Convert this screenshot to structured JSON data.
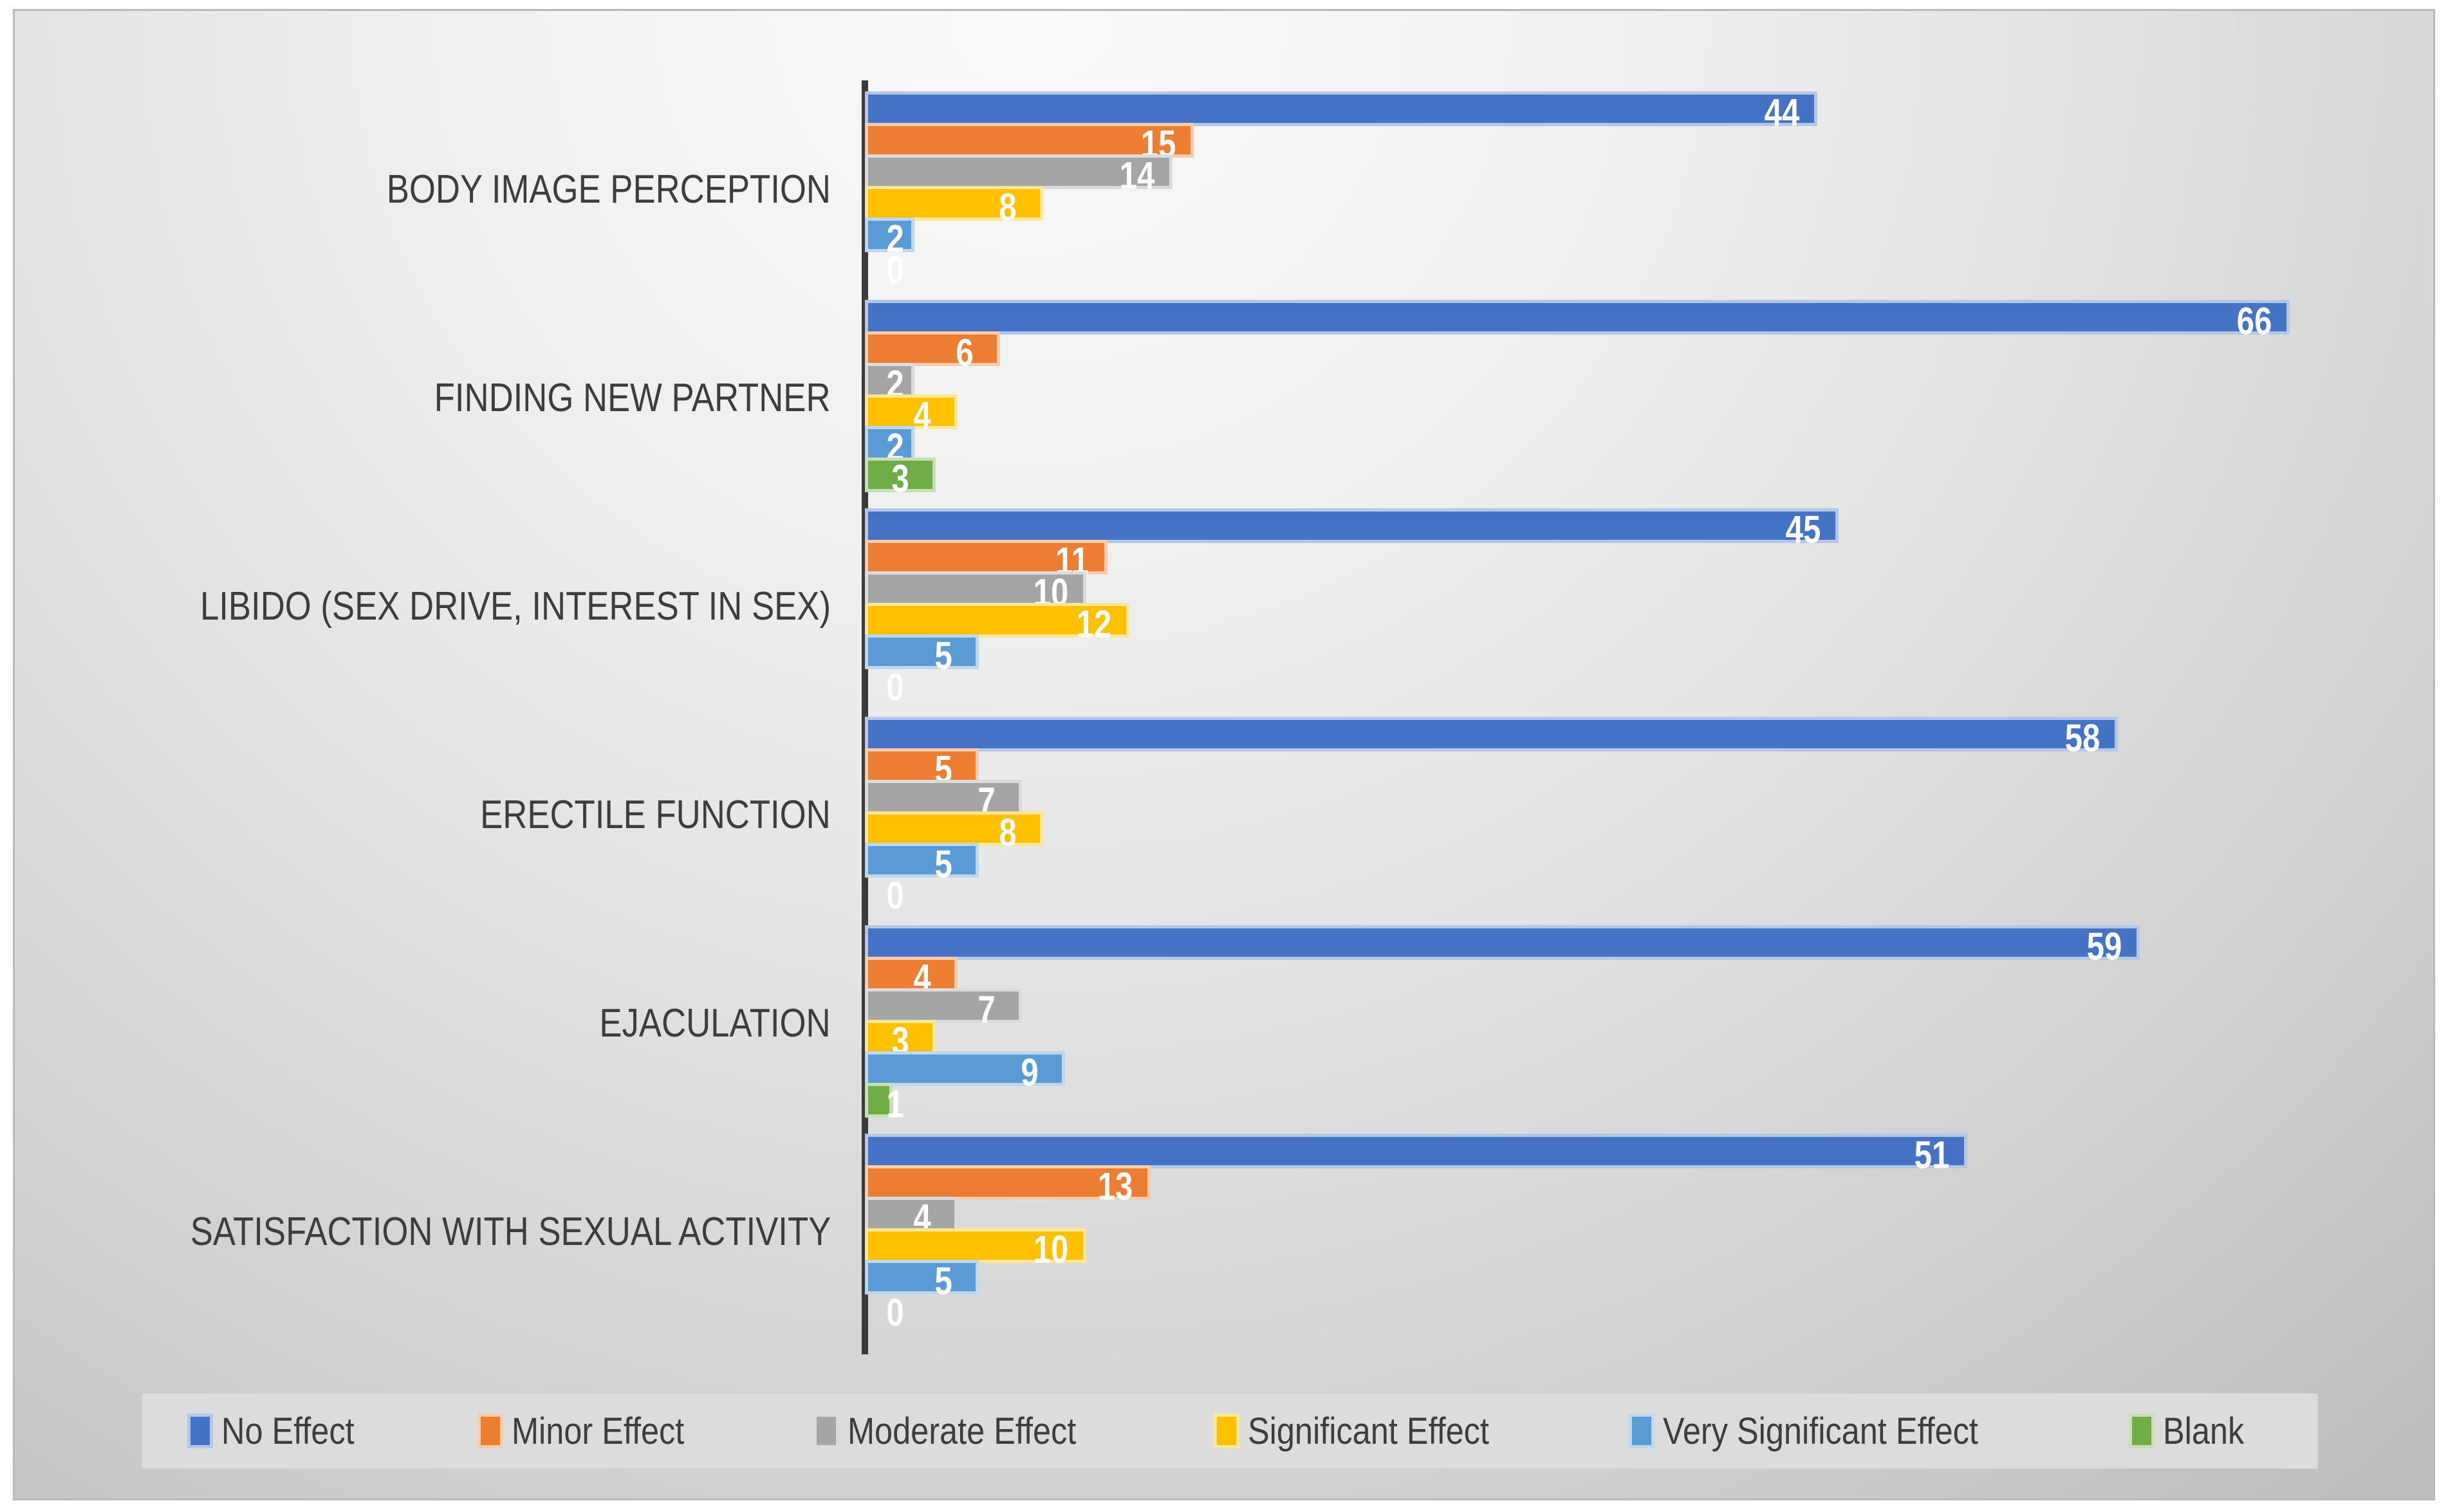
{
  "chart_data": {
    "type": "bar",
    "orientation": "horizontal",
    "title": "",
    "xlabel": "",
    "ylabel": "",
    "xlim": [
      0,
      70
    ],
    "grid": false,
    "legend_position": "bottom",
    "value_label_color": "#FFFFFF",
    "axis_color": "#3B3B3B",
    "category_label_color": "#3D3D3D",
    "legend_background": "#DCDCDC",
    "categories": [
      "BODY IMAGE PERCEPTION",
      "FINDING NEW PARTNER",
      "LIBIDO (SEX DRIVE, INTEREST IN SEX)",
      "ERECTILE FUNCTION",
      "EJACULATION",
      "SATISFACTION WITH SEXUAL ACTIVITY"
    ],
    "series": [
      {
        "name": "No Effect",
        "color": "#4472C4",
        "tint": "#B4C7E7",
        "values": [
          44,
          66,
          45,
          58,
          59,
          51
        ]
      },
      {
        "name": "Minor Effect",
        "color": "#ED7D31",
        "tint": "#F8CBAD",
        "values": [
          15,
          6,
          11,
          5,
          4,
          13
        ]
      },
      {
        "name": "Moderate Effect",
        "color": "#A5A5A5",
        "tint": "#DBDBDB",
        "values": [
          14,
          2,
          10,
          7,
          7,
          4
        ]
      },
      {
        "name": "Significant Effect",
        "color": "#FFC000",
        "tint": "#FFE699",
        "values": [
          8,
          4,
          12,
          8,
          3,
          10
        ]
      },
      {
        "name": "Very Significant Effect",
        "color": "#5B9BD5",
        "tint": "#BDD7EE",
        "values": [
          2,
          2,
          5,
          5,
          9,
          5
        ]
      },
      {
        "name": "Blank",
        "color": "#70AD47",
        "tint": "#C6E0B4",
        "values": [
          0,
          3,
          0,
          0,
          1,
          0
        ]
      }
    ]
  }
}
